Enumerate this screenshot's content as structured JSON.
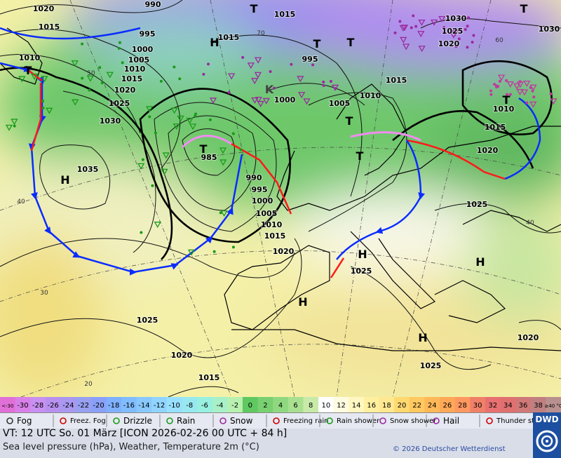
{
  "isobar_labels": [
    "1020",
    "1015",
    "1010",
    "990",
    "995",
    "1000",
    "1005",
    "1010",
    "1015",
    "1020",
    "1025",
    "1030",
    "1035",
    "985",
    "990",
    "995",
    "1000",
    "1005",
    "1010",
    "1015",
    "1020",
    "1025",
    "1020",
    "1015",
    "1015",
    "1015",
    "995",
    "1000",
    "1005",
    "1010",
    "1015",
    "1030",
    "1025",
    "1020",
    "1030",
    "1010",
    "1015",
    "1020",
    "1025",
    "1025",
    "1020",
    "1025"
  ],
  "pressure_centers": [
    "T",
    "T",
    "H",
    "T",
    "T",
    "T",
    "K",
    "T",
    "H",
    "T",
    "T",
    "H",
    "H",
    "H",
    "H",
    "T"
  ],
  "isotherm_labels": [
    "50",
    "40",
    "30",
    "20",
    "60",
    "70",
    "40"
  ],
  "color_scale": [
    {
      "label": "<-30",
      "color": "#e070d8"
    },
    {
      "label": "-30",
      "color": "#d880e8"
    },
    {
      "label": "-28",
      "color": "#c890f0"
    },
    {
      "label": "-26",
      "color": "#b890f0"
    },
    {
      "label": "-24",
      "color": "#a898f0"
    },
    {
      "label": "-22",
      "color": "#98a0f0"
    },
    {
      "label": "-20",
      "color": "#8aa0f8"
    },
    {
      "label": "-18",
      "color": "#7fb0ff"
    },
    {
      "label": "-16",
      "color": "#80bcff"
    },
    {
      "label": "-14",
      "color": "#88c8ff"
    },
    {
      "label": "-12",
      "color": "#90d4ff"
    },
    {
      "label": "-10",
      "color": "#98e0ff"
    },
    {
      "label": "-8",
      "color": "#98e8f0"
    },
    {
      "label": "-6",
      "color": "#98f0e0"
    },
    {
      "label": "-4",
      "color": "#a8f0c8"
    },
    {
      "label": "-2",
      "color": "#b8f0b0"
    },
    {
      "label": "0",
      "color": "#60c860"
    },
    {
      "label": "2",
      "color": "#78d070"
    },
    {
      "label": "4",
      "color": "#90d880"
    },
    {
      "label": "6",
      "color": "#a8e090"
    },
    {
      "label": "8",
      "color": "#c8eaa8"
    },
    {
      "label": "10",
      "color": "#ffffff"
    },
    {
      "label": "12",
      "color": "#fffbe0"
    },
    {
      "label": "14",
      "color": "#fff6c0"
    },
    {
      "label": "16",
      "color": "#fff0a0"
    },
    {
      "label": "18",
      "color": "#ffe890"
    },
    {
      "label": "20",
      "color": "#ffd870"
    },
    {
      "label": "22",
      "color": "#ffc860"
    },
    {
      "label": "24",
      "color": "#ffb858"
    },
    {
      "label": "26",
      "color": "#ffa858"
    },
    {
      "label": "28",
      "color": "#ff9860"
    },
    {
      "label": "30",
      "color": "#f08068"
    },
    {
      "label": "32",
      "color": "#e87070"
    },
    {
      "label": "34",
      "color": "#e07070"
    },
    {
      "label": "36",
      "color": "#d07878"
    },
    {
      "label": "38",
      "color": "#c08080"
    },
    {
      "label": "≥40 °C",
      "color": "#b89090"
    }
  ],
  "weather_legend": [
    "Fog",
    "Freez. Fog",
    "Drizzle",
    "Rain",
    "Snow",
    "Freezing rain",
    "Rain shower",
    "Snow shower",
    "Hail",
    "Thunder storm"
  ],
  "footer": {
    "valid_time": "VT: 12 UTC So.  01 März [ICON 2026-02-26  00 UTC + 84 h]",
    "description": "Sea level pressure (hPa), Weather, Temperature 2m (°C)",
    "copyright": "© 2026 Deutscher Wetterdienst",
    "logo": "DWD"
  }
}
